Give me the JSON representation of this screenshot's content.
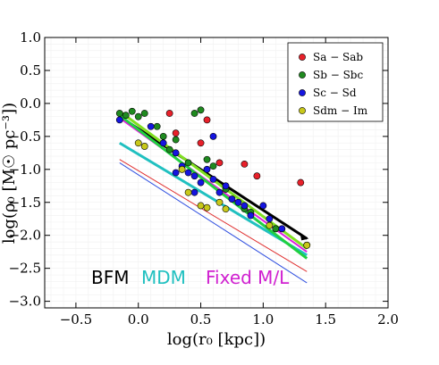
{
  "chart_data": {
    "type": "scatter",
    "xlabel": "log(r₀ [kpc])",
    "ylabel": "log(ρ₀ [M☉ pc⁻³])",
    "xlim": [
      -0.75,
      2.0
    ],
    "ylim": [
      -3.1,
      1.0
    ],
    "xticks": [
      -0.5,
      0.0,
      0.5,
      1.0,
      1.5,
      2.0
    ],
    "xtick_labels": [
      "−0.5",
      "0.0",
      "0.5",
      "1.0",
      "1.5",
      "2.0"
    ],
    "yticks": [
      1.0,
      0.5,
      0.0,
      -0.5,
      -1.0,
      -1.5,
      -2.0,
      -2.5,
      -3.0
    ],
    "ytick_labels": [
      "1.0",
      "0.5",
      "0.0",
      "−0.5",
      "−1.0",
      "−1.5",
      "−2.0",
      "−2.5",
      "−3.0"
    ],
    "grid": true,
    "legend_position": "top-right",
    "series": [
      {
        "name": "Sa − Sab",
        "color": "#e8202a",
        "points": [
          [
            0.25,
            -0.15
          ],
          [
            0.55,
            -0.25
          ],
          [
            0.3,
            -0.45
          ],
          [
            0.85,
            -0.92
          ],
          [
            0.95,
            -1.1
          ],
          [
            1.3,
            -1.2
          ],
          [
            0.5,
            -0.6
          ],
          [
            0.65,
            -0.9
          ],
          [
            1.35,
            -2.15
          ]
        ]
      },
      {
        "name": "Sb − Sbc",
        "color": "#1f8a1f",
        "points": [
          [
            -0.15,
            -0.15
          ],
          [
            -0.1,
            -0.18
          ],
          [
            0.0,
            -0.2
          ],
          [
            0.05,
            -0.15
          ],
          [
            -0.05,
            -0.12
          ],
          [
            0.15,
            -0.35
          ],
          [
            0.2,
            -0.5
          ],
          [
            0.3,
            -0.55
          ],
          [
            0.45,
            -0.15
          ],
          [
            0.5,
            -0.1
          ],
          [
            0.55,
            -0.85
          ],
          [
            0.6,
            -0.95
          ],
          [
            0.7,
            -1.3
          ],
          [
            0.85,
            -1.6
          ],
          [
            0.9,
            -1.65
          ],
          [
            1.1,
            -1.9
          ],
          [
            0.4,
            -0.9
          ],
          [
            0.25,
            -0.7
          ]
        ]
      },
      {
        "name": "Sc − Sd",
        "color": "#1515e0",
        "points": [
          [
            -0.15,
            -0.25
          ],
          [
            0.1,
            -0.35
          ],
          [
            0.2,
            -0.6
          ],
          [
            0.3,
            -0.75
          ],
          [
            0.35,
            -0.95
          ],
          [
            0.4,
            -1.05
          ],
          [
            0.45,
            -1.1
          ],
          [
            0.5,
            -1.2
          ],
          [
            0.55,
            -1.0
          ],
          [
            0.6,
            -1.15
          ],
          [
            0.65,
            -1.35
          ],
          [
            0.7,
            -1.25
          ],
          [
            0.75,
            -1.45
          ],
          [
            0.8,
            -1.5
          ],
          [
            0.85,
            -1.55
          ],
          [
            0.9,
            -1.7
          ],
          [
            1.0,
            -1.55
          ],
          [
            1.05,
            -1.75
          ],
          [
            1.15,
            -1.9
          ],
          [
            0.3,
            -1.05
          ],
          [
            0.6,
            -0.5
          ],
          [
            0.45,
            -1.35
          ]
        ]
      },
      {
        "name": "Sdm − Im",
        "color": "#c8c81a",
        "points": [
          [
            0.0,
            -0.6
          ],
          [
            0.05,
            -0.65
          ],
          [
            0.4,
            -1.35
          ],
          [
            0.5,
            -1.55
          ],
          [
            0.55,
            -1.58
          ],
          [
            0.65,
            -1.5
          ],
          [
            0.7,
            -1.6
          ],
          [
            1.05,
            -1.85
          ],
          [
            1.35,
            -2.15
          ],
          [
            0.35,
            -1.0
          ]
        ]
      }
    ],
    "fit_lines": [
      {
        "label": "BFM",
        "color": "#000000",
        "x": [
          -0.15,
          1.35
        ],
        "y": [
          -0.2,
          -2.05
        ],
        "width": 3
      },
      {
        "label": "MDM",
        "color": "#20c0c0",
        "x": [
          -0.15,
          1.35
        ],
        "y": [
          -0.6,
          -2.3
        ],
        "width": 3
      },
      {
        "label": "Fixed M/L",
        "color": "#e020e0",
        "x": [
          -0.15,
          1.35
        ],
        "y": [
          -0.22,
          -2.25
        ],
        "width": 2
      },
      {
        "color": "#80e020",
        "x": [
          -0.15,
          1.35
        ],
        "y": [
          -0.12,
          -2.2
        ],
        "width": 3
      },
      {
        "color": "#20d040",
        "x": [
          -0.15,
          1.35
        ],
        "y": [
          -0.18,
          -2.35
        ],
        "width": 3
      },
      {
        "color": "#e03030",
        "x": [
          -0.15,
          1.35
        ],
        "y": [
          -0.85,
          -2.55
        ],
        "width": 1
      },
      {
        "color": "#3050e0",
        "x": [
          -0.15,
          1.35
        ],
        "y": [
          -0.9,
          -2.72
        ],
        "width": 1
      }
    ],
    "annotations": [
      {
        "text": "BFM",
        "color": "#000000"
      },
      {
        "text": "MDM",
        "color": "#20c0c0"
      },
      {
        "text": "Fixed M/L",
        "color": "#d020d0"
      }
    ]
  }
}
